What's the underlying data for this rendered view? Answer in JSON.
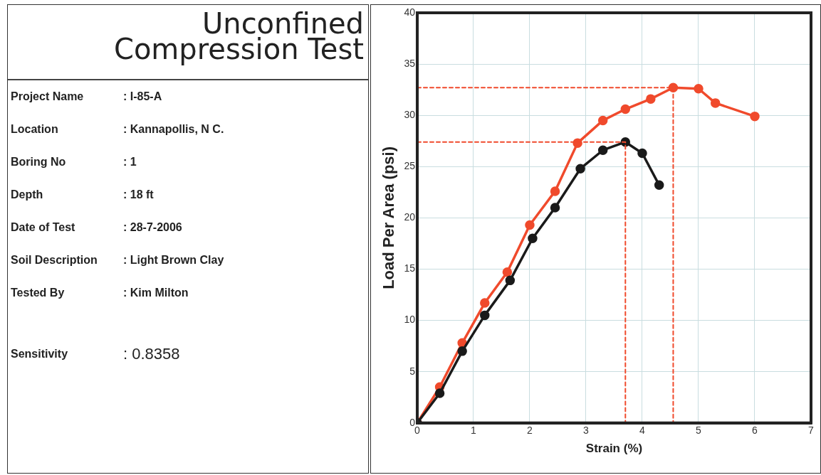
{
  "chart_data": [
    {
      "type": "other",
      "title": "Unconfined Compression Test",
      "annotations": [
        "Project Name",
        ": I-85-A",
        "Location",
        ": Kannapollis, N C.",
        "Boring No",
        ": 1",
        "Depth",
        ": 18 ft",
        "Date of Test",
        ": 28-7-2006",
        "Soil Description",
        ": Light Brown Clay",
        "Tested By",
        ": Kim Milton",
        "Sensitivity",
        ": 0.8358"
      ]
    },
    {
      "type": "line",
      "xlabel": "Strain (%)",
      "ylabel": "Load Per Area (psi)",
      "xlim": [
        0,
        7
      ],
      "xticks": [
        0,
        1,
        2,
        3,
        4,
        5,
        6,
        7
      ],
      "ylim": [
        0,
        40
      ],
      "yticks": [
        0,
        5,
        10,
        15,
        20,
        25,
        30,
        35,
        40
      ],
      "grid": true,
      "legend": false,
      "marker": "circle",
      "series": [
        {
          "color": "#f04a2c",
          "x": [
            0,
            0.4,
            0.8,
            1.2,
            1.6,
            2.0,
            2.45,
            2.85,
            3.3,
            3.7,
            4.15,
            4.55,
            5.0,
            5.3,
            6.0
          ],
          "values": [
            0,
            3.5,
            7.8,
            11.7,
            14.7,
            19.3,
            22.6,
            27.3,
            29.5,
            30.6,
            31.6,
            32.7,
            32.6,
            31.2,
            29.9
          ]
        },
        {
          "color": "#1a1a1a",
          "x": [
            0,
            0.4,
            0.8,
            1.2,
            1.65,
            2.05,
            2.45,
            2.9,
            3.3,
            3.7,
            4.0,
            4.3
          ],
          "values": [
            0,
            2.9,
            7.0,
            10.5,
            13.9,
            18.0,
            21.0,
            24.8,
            26.6,
            27.4,
            26.3,
            23.2
          ]
        },
        {
          "color": "#f04a2c",
          "line_style": "dashed",
          "marker": "none",
          "x": [
            0,
            4.55,
            4.55
          ],
          "values": [
            32.7,
            32.7,
            0
          ]
        },
        {
          "color": "#f04a2c",
          "line_style": "dashed",
          "marker": "none",
          "x": [
            0,
            3.7,
            3.7
          ],
          "values": [
            27.4,
            27.4,
            0
          ]
        }
      ]
    }
  ]
}
